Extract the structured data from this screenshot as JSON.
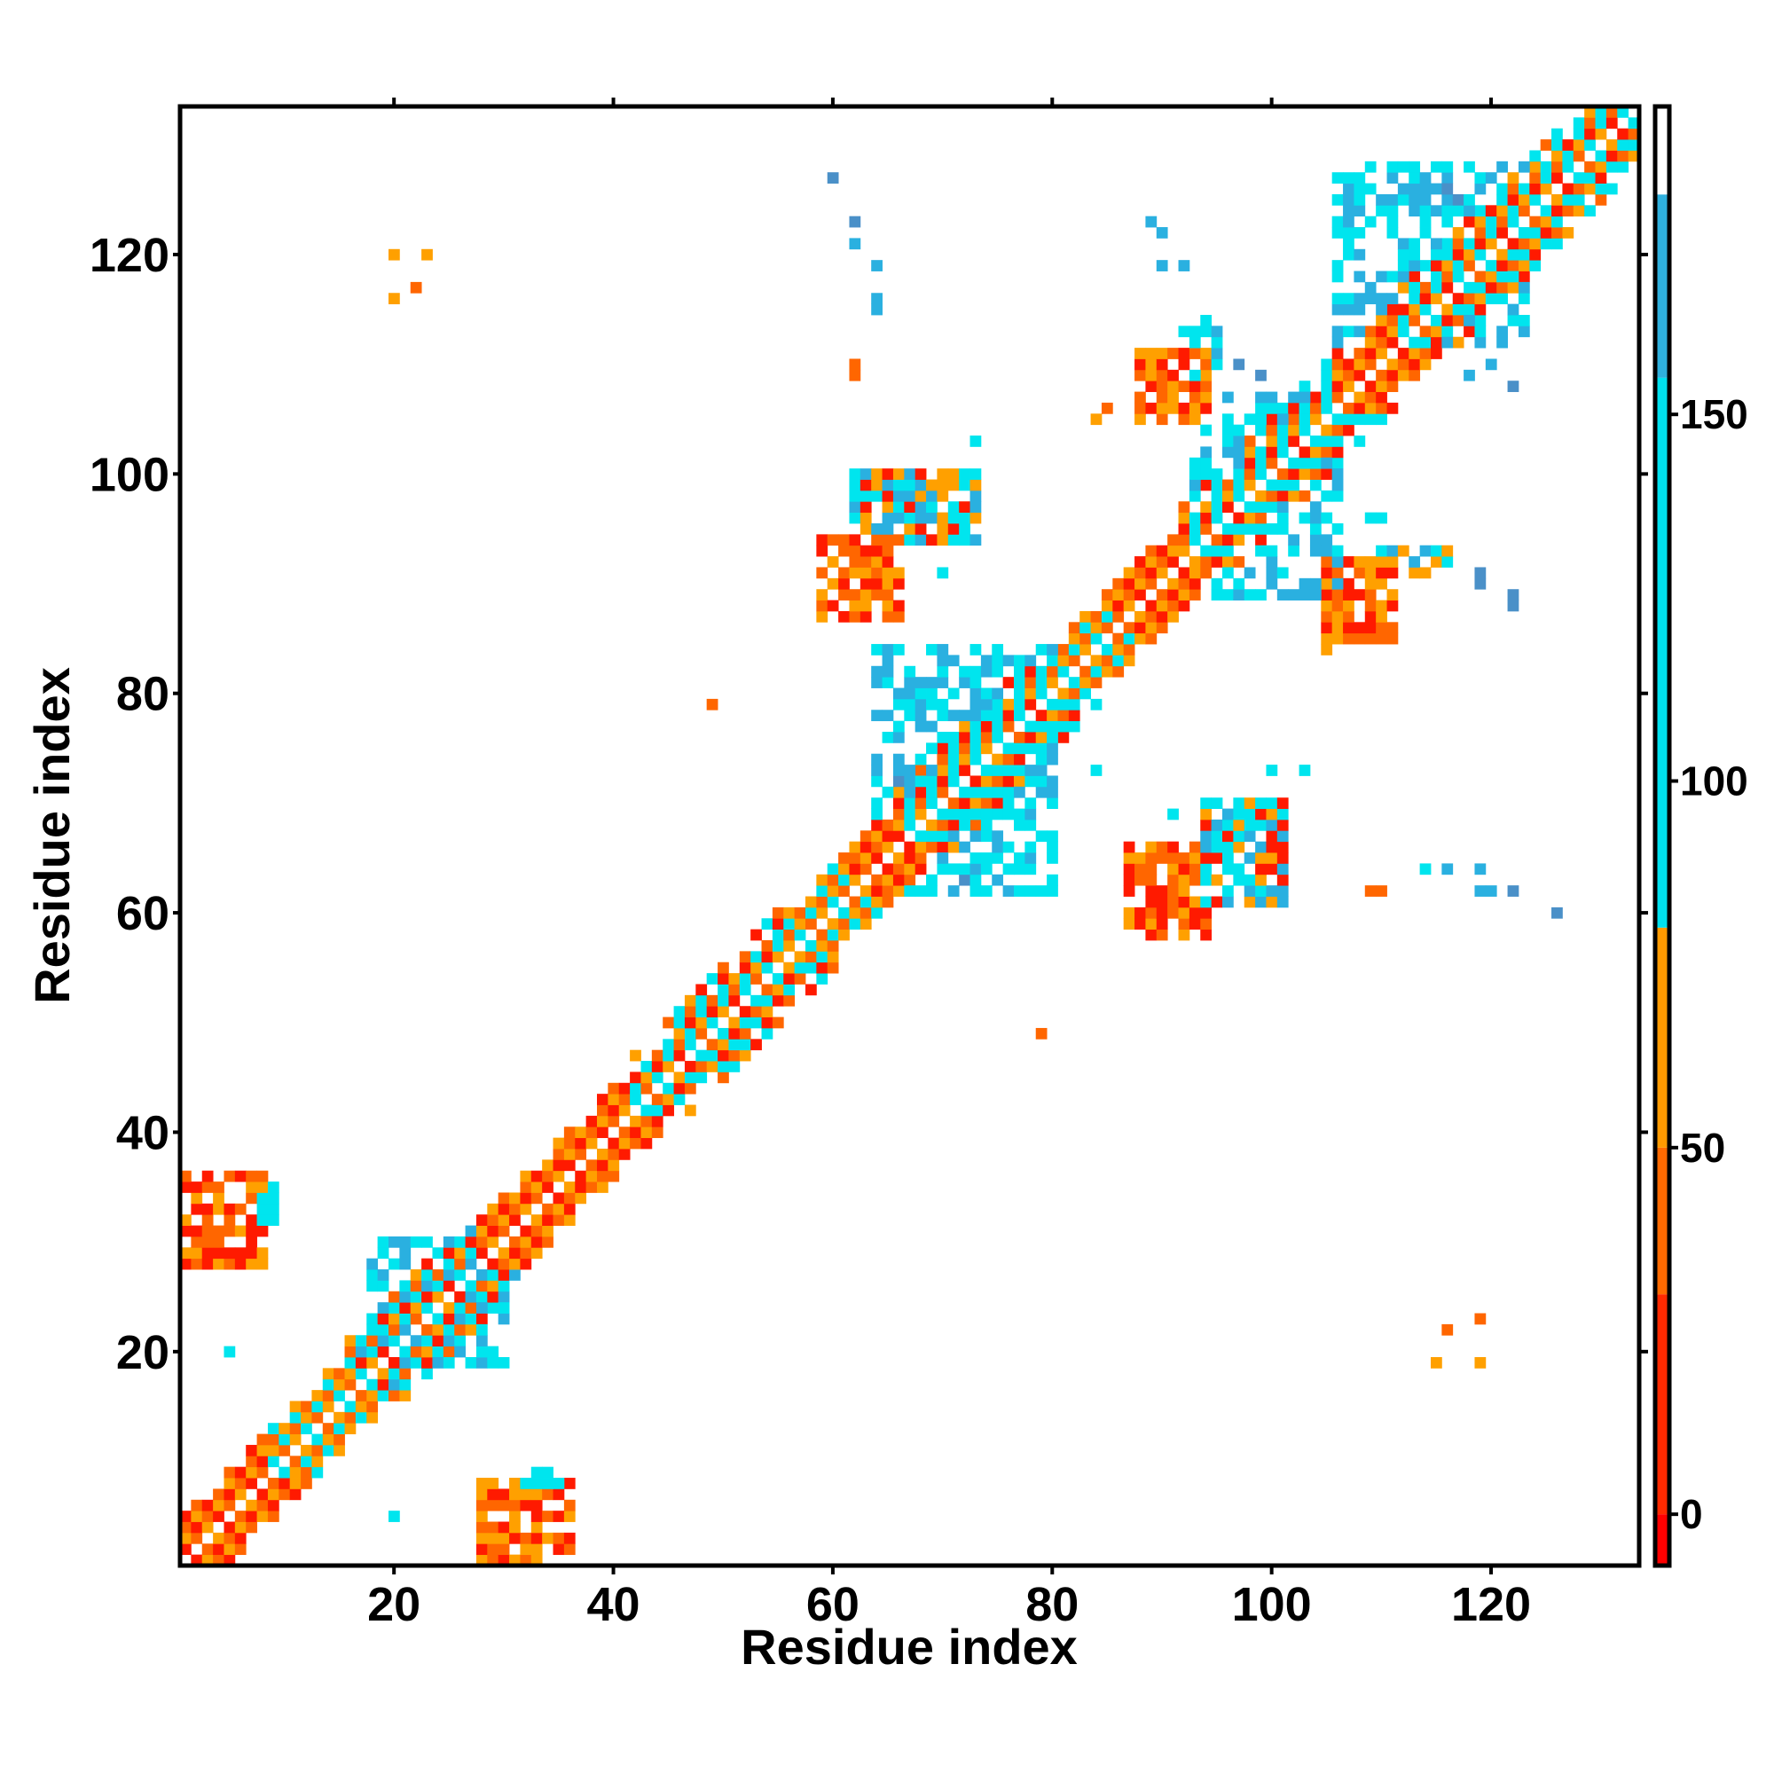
{
  "chart_data": {
    "type": "heatmap",
    "title": "",
    "xlabel": "Residue index",
    "ylabel": "Residue index",
    "xlim": [
      1,
      133
    ],
    "ylim": [
      1,
      133
    ],
    "x_ticks": [
      20,
      40,
      60,
      80,
      100,
      120
    ],
    "y_ticks": [
      20,
      40,
      60,
      80,
      100,
      120
    ],
    "grid": false,
    "colorbar": {
      "ticks": [
        0,
        50,
        100,
        150
      ],
      "range": [
        -7,
        192
      ],
      "bands": [
        {
          "from": -7,
          "to": 0,
          "color": "#ff0000"
        },
        {
          "from": 0,
          "to": 30,
          "color": "#ff2a00"
        },
        {
          "from": 30,
          "to": 50,
          "color": "#ff6a00"
        },
        {
          "from": 50,
          "to": 80,
          "color": "#ff9a00"
        },
        {
          "from": 80,
          "to": 155,
          "color": "#00e0ee"
        },
        {
          "from": 155,
          "to": 180,
          "color": "#2fb0dd"
        },
        {
          "from": 180,
          "to": 192,
          "color": "#ffffff"
        }
      ]
    },
    "cell_colors": {
      "r": "#ff1a00",
      "o": "#ff6600",
      "y": "#ffa000",
      "c": "#00e5ee",
      "b": "#2ab0e0",
      "d": "#4a90c8"
    },
    "cell_meaning": {
      "r": "value below 0",
      "o": "value 0-50",
      "y": "value 50-80",
      "c": "value 80-155",
      "b": "value 155-180",
      "d": "value near 180"
    },
    "diagonal_segments": [
      {
        "from": 1,
        "to": 9,
        "pattern": "roy"
      },
      {
        "from": 9,
        "to": 16,
        "pattern": "oyc"
      },
      {
        "from": 16,
        "to": 28,
        "pattern": "ocyrcb"
      },
      {
        "from": 28,
        "to": 36,
        "pattern": "ryo"
      },
      {
        "from": 36,
        "to": 42,
        "pattern": "oyr"
      },
      {
        "from": 42,
        "to": 56,
        "pattern": "ocyrc"
      },
      {
        "from": 56,
        "to": 62,
        "pattern": "oyc"
      },
      {
        "from": 62,
        "to": 66,
        "pattern": "ryo"
      },
      {
        "from": 66,
        "to": 80,
        "pattern": "ocrcyc"
      },
      {
        "from": 80,
        "to": 86,
        "pattern": "oyc"
      },
      {
        "from": 86,
        "to": 92,
        "pattern": "roy"
      },
      {
        "from": 92,
        "to": 106,
        "pattern": "ocrcyc"
      },
      {
        "from": 106,
        "to": 112,
        "pattern": "oyr"
      },
      {
        "from": 112,
        "to": 133,
        "pattern": "ocyrc"
      }
    ],
    "blocks": [
      {
        "x": [
          1,
          8
        ],
        "y": [
          28,
          36
        ],
        "colors": "roy"
      },
      {
        "x": [
          8,
          9
        ],
        "y": [
          32,
          35
        ],
        "colors": "c"
      },
      {
        "x": [
          28,
          36
        ],
        "y": [
          1,
          8
        ],
        "colors": "roy"
      },
      {
        "x": [
          32,
          35
        ],
        "y": [
          8,
          9
        ],
        "colors": "c"
      },
      {
        "x": [
          59,
          66
        ],
        "y": [
          87,
          94
        ],
        "colors": "roy"
      },
      {
        "x": [
          62,
          73
        ],
        "y": [
          94,
          100
        ],
        "colors": "cyrb"
      },
      {
        "x": [
          87,
          94
        ],
        "y": [
          58,
          66
        ],
        "colors": "roy"
      },
      {
        "x": [
          94,
          101
        ],
        "y": [
          61,
          70
        ],
        "colors": "cyrb"
      },
      {
        "x": [
          88,
          94
        ],
        "y": [
          105,
          111
        ],
        "colors": "roy"
      },
      {
        "x": [
          92,
          95
        ],
        "y": [
          109,
          114
        ],
        "colors": "cb"
      },
      {
        "x": [
          105,
          111
        ],
        "y": [
          85,
          92
        ],
        "colors": "roy"
      },
      {
        "x": [
          110,
          116
        ],
        "y": [
          91,
          93
        ],
        "colors": "cyb"
      },
      {
        "x": [
          18,
          30
        ],
        "y": [
          19,
          30
        ],
        "colors": "cb"
      },
      {
        "x": [
          64,
          80
        ],
        "y": [
          62,
          84
        ],
        "colors": "cb"
      },
      {
        "x": [
          93,
          106
        ],
        "y": [
          89,
          107
        ],
        "colors": "cb"
      },
      {
        "x": [
          106,
          123
        ],
        "y": [
          112,
          128
        ],
        "colors": "cb"
      }
    ],
    "points": [
      {
        "x": 20,
        "y": 120,
        "c": "y"
      },
      {
        "x": 23,
        "y": 120,
        "c": "y"
      },
      {
        "x": 20,
        "y": 116,
        "c": "y"
      },
      {
        "x": 22,
        "y": 117,
        "c": "o"
      },
      {
        "x": 49,
        "y": 79,
        "c": "o"
      },
      {
        "x": 79,
        "y": 49,
        "c": "o"
      },
      {
        "x": 5,
        "y": 20,
        "c": "c"
      },
      {
        "x": 20,
        "y": 5,
        "c": "c"
      },
      {
        "x": 60,
        "y": 127,
        "c": "d"
      },
      {
        "x": 62,
        "y": 123,
        "c": "d"
      },
      {
        "x": 62,
        "y": 121,
        "c": "b"
      },
      {
        "x": 64,
        "y": 119,
        "c": "b"
      },
      {
        "x": 64,
        "y": 116,
        "c": "b"
      },
      {
        "x": 64,
        "y": 115,
        "c": "b"
      },
      {
        "x": 62,
        "y": 110,
        "c": "o"
      },
      {
        "x": 62,
        "y": 109,
        "c": "o"
      },
      {
        "x": 73,
        "y": 103,
        "c": "c"
      },
      {
        "x": 73,
        "y": 100,
        "c": "c"
      },
      {
        "x": 70,
        "y": 91,
        "c": "c"
      },
      {
        "x": 73,
        "y": 84,
        "c": "c"
      },
      {
        "x": 66,
        "y": 72,
        "c": "d"
      },
      {
        "x": 72,
        "y": 63,
        "c": "d"
      },
      {
        "x": 84,
        "y": 73,
        "c": "c"
      },
      {
        "x": 91,
        "y": 69,
        "c": "c"
      },
      {
        "x": 100,
        "y": 73,
        "c": "c"
      },
      {
        "x": 103,
        "y": 73,
        "c": "c"
      },
      {
        "x": 84,
        "y": 105,
        "c": "y"
      },
      {
        "x": 85,
        "y": 106,
        "c": "o"
      },
      {
        "x": 89,
        "y": 123,
        "c": "b"
      },
      {
        "x": 90,
        "y": 122,
        "c": "b"
      },
      {
        "x": 90,
        "y": 119,
        "c": "b"
      },
      {
        "x": 92,
        "y": 119,
        "c": "b"
      },
      {
        "x": 97,
        "y": 110,
        "c": "d"
      },
      {
        "x": 99,
        "y": 109,
        "c": "d"
      },
      {
        "x": 100,
        "y": 92,
        "c": "b"
      },
      {
        "x": 100,
        "y": 90,
        "c": "b"
      },
      {
        "x": 105,
        "y": 84,
        "c": "y"
      },
      {
        "x": 105,
        "y": 85,
        "c": "y"
      },
      {
        "x": 109,
        "y": 96,
        "c": "c"
      },
      {
        "x": 110,
        "y": 96,
        "c": "c"
      },
      {
        "x": 109,
        "y": 62,
        "c": "o"
      },
      {
        "x": 110,
        "y": 62,
        "c": "o"
      },
      {
        "x": 114,
        "y": 64,
        "c": "c"
      },
      {
        "x": 116,
        "y": 64,
        "c": "b"
      },
      {
        "x": 119,
        "y": 64,
        "c": "b"
      },
      {
        "x": 119,
        "y": 62,
        "c": "b"
      },
      {
        "x": 120,
        "y": 62,
        "c": "b"
      },
      {
        "x": 122,
        "y": 62,
        "c": "d"
      },
      {
        "x": 126,
        "y": 60,
        "c": "d"
      },
      {
        "x": 119,
        "y": 90,
        "c": "d"
      },
      {
        "x": 119,
        "y": 91,
        "c": "d"
      },
      {
        "x": 122,
        "y": 89,
        "c": "d"
      },
      {
        "x": 122,
        "y": 88,
        "c": "d"
      },
      {
        "x": 118,
        "y": 109,
        "c": "b"
      },
      {
        "x": 120,
        "y": 110,
        "c": "b"
      },
      {
        "x": 122,
        "y": 108,
        "c": "d"
      },
      {
        "x": 116,
        "y": 22,
        "c": "o"
      },
      {
        "x": 119,
        "y": 23,
        "c": "o"
      },
      {
        "x": 115,
        "y": 19,
        "c": "y"
      },
      {
        "x": 119,
        "y": 19,
        "c": "y"
      },
      {
        "x": 116,
        "y": 126,
        "c": "d"
      },
      {
        "x": 117,
        "y": 125,
        "c": "d"
      }
    ]
  }
}
